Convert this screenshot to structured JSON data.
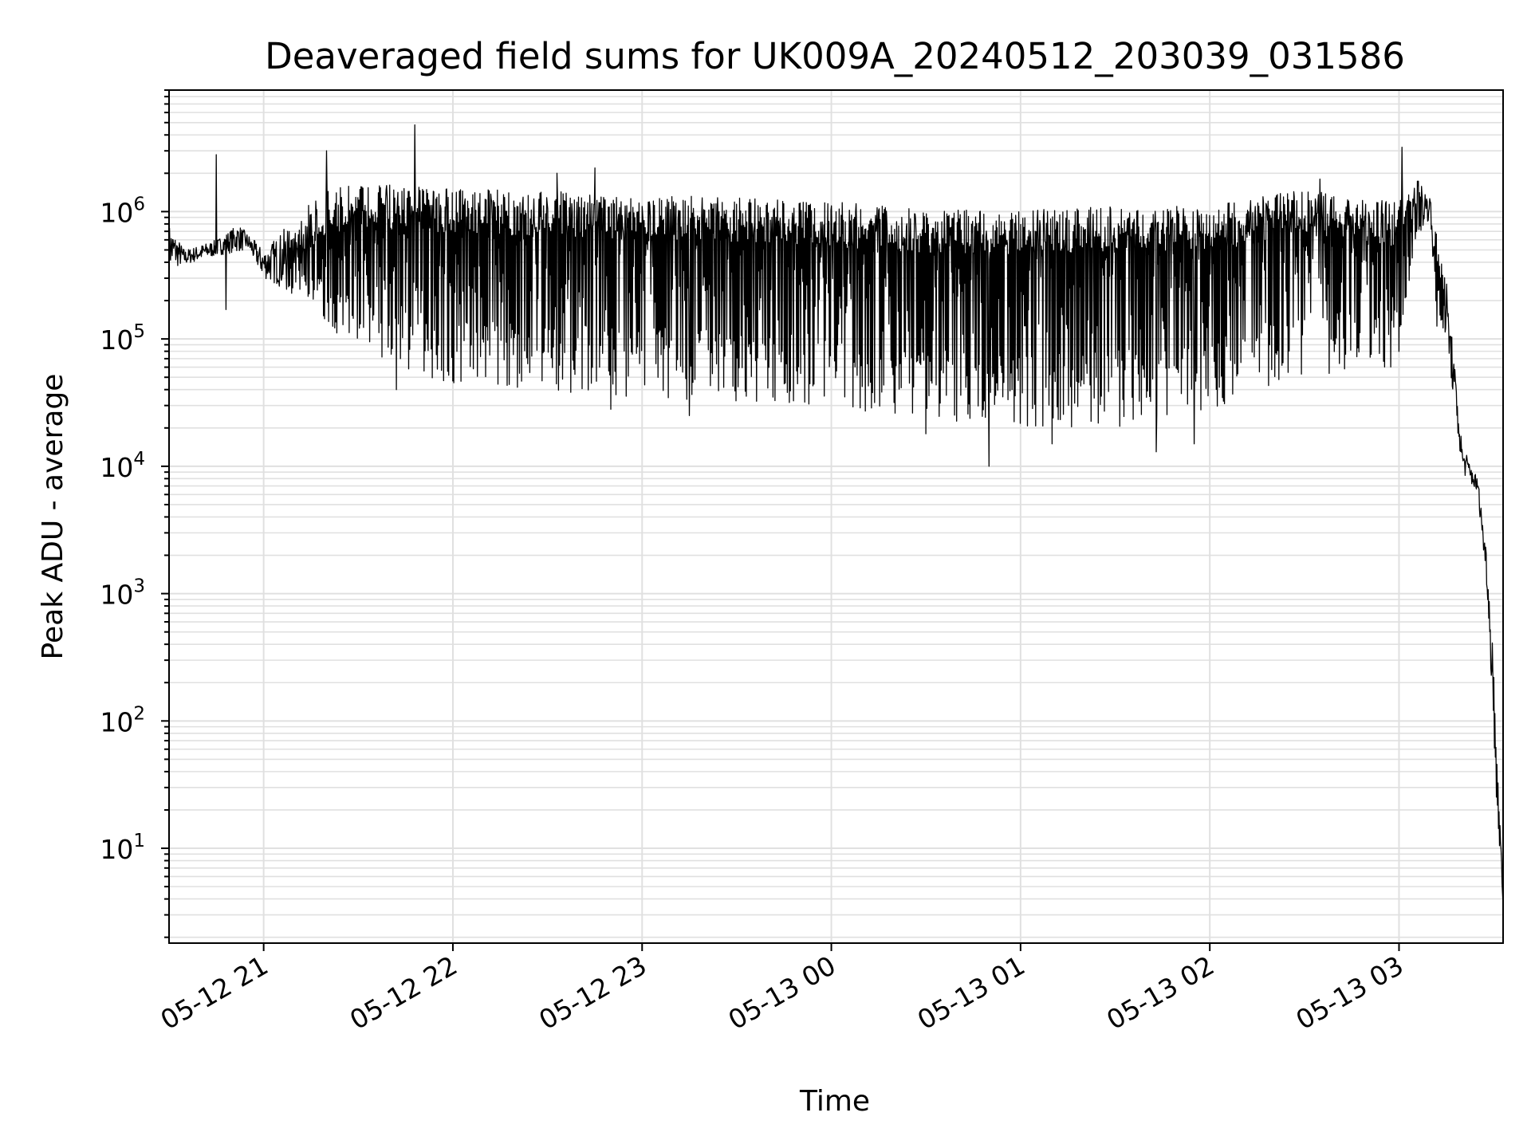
{
  "chart_data": {
    "type": "line",
    "title": "Deaveraged field sums for UK009A_20240512_203039_031586",
    "xlabel": "Time",
    "ylabel": "Peak ADU - average",
    "y_scale": "log",
    "ylim": [
      1.8,
      9000000
    ],
    "xlim": [
      "2024-05-12 20:30",
      "2024-05-13 03:33"
    ],
    "grid": true,
    "line_color": "#000000",
    "grid_color": "#e0e0e0",
    "x_ticks": [
      {
        "value": "2024-05-12 21:00",
        "label": "05-12 21"
      },
      {
        "value": "2024-05-12 22:00",
        "label": "05-12 22"
      },
      {
        "value": "2024-05-12 23:00",
        "label": "05-12 23"
      },
      {
        "value": "2024-05-13 00:00",
        "label": "05-13 00"
      },
      {
        "value": "2024-05-13 01:00",
        "label": "05-13 01"
      },
      {
        "value": "2024-05-13 02:00",
        "label": "05-13 02"
      },
      {
        "value": "2024-05-13 03:00",
        "label": "05-13 03"
      }
    ],
    "y_ticks": [
      {
        "value": 10,
        "base": "10",
        "exp": "1"
      },
      {
        "value": 100,
        "base": "10",
        "exp": "2"
      },
      {
        "value": 1000,
        "base": "10",
        "exp": "3"
      },
      {
        "value": 10000,
        "base": "10",
        "exp": "4"
      },
      {
        "value": 100000,
        "base": "10",
        "exp": "5"
      },
      {
        "value": 1000000,
        "base": "10",
        "exp": "6"
      }
    ],
    "series": [
      {
        "upper_envelope": [
          [
            "2024-05-12 20:30",
            800000
          ],
          [
            "2024-05-12 20:35",
            500000
          ],
          [
            "2024-05-12 20:45",
            600000
          ],
          [
            "2024-05-12 20:52",
            800000
          ],
          [
            "2024-05-12 21:00",
            500000
          ],
          [
            "2024-05-12 21:10",
            900000
          ],
          [
            "2024-05-12 21:20",
            1500000
          ],
          [
            "2024-05-12 21:30",
            1700000
          ],
          [
            "2024-05-12 21:45",
            1600000
          ],
          [
            "2024-05-12 22:00",
            1500000
          ],
          [
            "2024-05-12 22:30",
            1450000
          ],
          [
            "2024-05-12 23:00",
            1350000
          ],
          [
            "2024-05-12 23:30",
            1300000
          ],
          [
            "2024-05-13 00:00",
            1200000
          ],
          [
            "2024-05-13 00:30",
            1050000
          ],
          [
            "2024-05-13 01:00",
            1050000
          ],
          [
            "2024-05-13 01:30",
            1100000
          ],
          [
            "2024-05-13 02:00",
            1100000
          ],
          [
            "2024-05-13 02:30",
            1500000
          ],
          [
            "2024-05-13 02:45",
            1300000
          ],
          [
            "2024-05-13 03:00",
            1200000
          ],
          [
            "2024-05-13 03:05",
            2000000
          ],
          [
            "2024-05-13 03:10",
            1300000
          ],
          [
            "2024-05-13 03:12",
            700000
          ],
          [
            "2024-05-13 03:15",
            300000
          ],
          [
            "2024-05-13 03:20",
            15000
          ],
          [
            "2024-05-13 03:25",
            8000
          ],
          [
            "2024-05-13 03:28",
            2000
          ],
          [
            "2024-05-13 03:31",
            100
          ],
          [
            "2024-05-13 03:33",
            3.5
          ]
        ],
        "lower_envelope": [
          [
            "2024-05-12 20:30",
            350000
          ],
          [
            "2024-05-12 20:45",
            450000
          ],
          [
            "2024-05-12 20:55",
            500000
          ],
          [
            "2024-05-12 21:00",
            300000
          ],
          [
            "2024-05-12 21:10",
            220000
          ],
          [
            "2024-05-12 21:20",
            130000
          ],
          [
            "2024-05-12 21:30",
            80000
          ],
          [
            "2024-05-12 21:45",
            55000
          ],
          [
            "2024-05-12 22:00",
            45000
          ],
          [
            "2024-05-12 22:30",
            38000
          ],
          [
            "2024-05-12 23:00",
            35000
          ],
          [
            "2024-05-12 23:30",
            32000
          ],
          [
            "2024-05-13 00:00",
            30000
          ],
          [
            "2024-05-13 00:30",
            22000
          ],
          [
            "2024-05-13 01:00",
            20000
          ],
          [
            "2024-05-13 01:30",
            20000
          ],
          [
            "2024-05-13 02:00",
            28000
          ],
          [
            "2024-05-13 02:30",
            50000
          ],
          [
            "2024-05-13 03:00",
            60000
          ],
          [
            "2024-05-13 03:05",
            600000
          ],
          [
            "2024-05-13 03:10",
            900000
          ],
          [
            "2024-05-13 03:12",
            120000
          ],
          [
            "2024-05-13 03:15",
            100000
          ],
          [
            "2024-05-13 03:20",
            9000
          ],
          [
            "2024-05-13 03:25",
            6000
          ],
          [
            "2024-05-13 03:28",
            1000
          ],
          [
            "2024-05-13 03:31",
            20
          ],
          [
            "2024-05-13 03:33",
            3.5
          ]
        ],
        "spikes": [
          [
            "2024-05-12 20:45",
            2800000
          ],
          [
            "2024-05-12 20:48",
            170000
          ],
          [
            "2024-05-12 21:20",
            3000000
          ],
          [
            "2024-05-12 21:48",
            4800000
          ],
          [
            "2024-05-12 21:42",
            40000
          ],
          [
            "2024-05-12 22:33",
            2000000
          ],
          [
            "2024-05-12 22:45",
            2200000
          ],
          [
            "2024-05-12 22:50",
            28000
          ],
          [
            "2024-05-12 23:15",
            25000
          ],
          [
            "2024-05-13 00:30",
            18000
          ],
          [
            "2024-05-13 00:50",
            10000
          ],
          [
            "2024-05-13 01:10",
            15000
          ],
          [
            "2024-05-13 01:43",
            13000
          ],
          [
            "2024-05-13 01:55",
            15000
          ],
          [
            "2024-05-13 02:35",
            1800000
          ],
          [
            "2024-05-13 03:01",
            3200000
          ]
        ]
      }
    ]
  }
}
